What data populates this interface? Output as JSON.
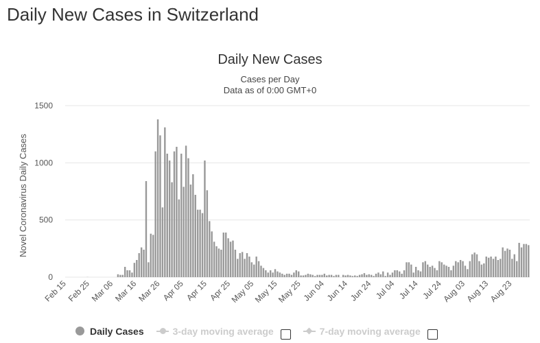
{
  "page": {
    "heading": "Daily New Cases in Switzerland"
  },
  "legend": {
    "daily_cases": "Daily Cases",
    "avg3": "3-day moving average",
    "avg7": "7-day moving average"
  },
  "colors": {
    "bar": "#999999",
    "grid": "#e6e6e6",
    "inactive": "#cccccc"
  },
  "chart_data": {
    "type": "bar",
    "title": "Daily New Cases",
    "subtitle": [
      "Cases per Day",
      "Data as of 0:00 GMT+0"
    ],
    "ylabel": "Novel Coronavirus Daily Cases",
    "xlabel": "",
    "ylim": [
      0,
      1500
    ],
    "yticks": [
      0,
      500,
      1000,
      1500
    ],
    "xticks": [
      "Feb 15",
      "Feb 25",
      "Mar 06",
      "Mar 16",
      "Mar 26",
      "Apr 05",
      "Apr 15",
      "Apr 25",
      "May 05",
      "May 15",
      "May 25",
      "Jun 04",
      "Jun 14",
      "Jun 24",
      "Jul 04",
      "Jul 14",
      "Jul 24",
      "Aug 03",
      "Aug 13",
      "Aug 23"
    ],
    "start_date": "Feb 15",
    "grid": true,
    "series": [
      {
        "name": "Daily Cases",
        "values": [
          0,
          0,
          0,
          0,
          0,
          0,
          0,
          0,
          0,
          1,
          0,
          0,
          0,
          0,
          0,
          0,
          0,
          0,
          0,
          0,
          0,
          0,
          25,
          20,
          20,
          90,
          60,
          60,
          40,
          125,
          150,
          210,
          260,
          240,
          840,
          130,
          380,
          370,
          1100,
          1380,
          1240,
          610,
          1310,
          1080,
          1020,
          830,
          1100,
          1140,
          680,
          1080,
          790,
          1150,
          1040,
          810,
          900,
          720,
          590,
          590,
          560,
          1020,
          760,
          490,
          400,
          310,
          270,
          250,
          240,
          390,
          390,
          340,
          310,
          320,
          240,
          160,
          210,
          220,
          160,
          210,
          180,
          130,
          110,
          180,
          140,
          100,
          80,
          60,
          40,
          60,
          40,
          70,
          50,
          40,
          30,
          20,
          30,
          30,
          20,
          40,
          60,
          50,
          15,
          15,
          20,
          30,
          25,
          20,
          10,
          20,
          20,
          20,
          30,
          15,
          20,
          20,
          10,
          20,
          20,
          0,
          20,
          15,
          20,
          15,
          10,
          15,
          10,
          20,
          25,
          35,
          20,
          25,
          20,
          10,
          30,
          40,
          25,
          50,
          10,
          40,
          20,
          40,
          60,
          60,
          50,
          30,
          60,
          130,
          130,
          110,
          40,
          90,
          60,
          50,
          130,
          140,
          110,
          90,
          100,
          80,
          60,
          140,
          130,
          110,
          100,
          90,
          60,
          100,
          140,
          130,
          150,
          140,
          100,
          70,
          140,
          200,
          215,
          200,
          140,
          110,
          120,
          180,
          170,
          180,
          160,
          180,
          150,
          160,
          260,
          230,
          250,
          240,
          160,
          200,
          140,
          300,
          260,
          290,
          290,
          280
        ]
      }
    ]
  }
}
